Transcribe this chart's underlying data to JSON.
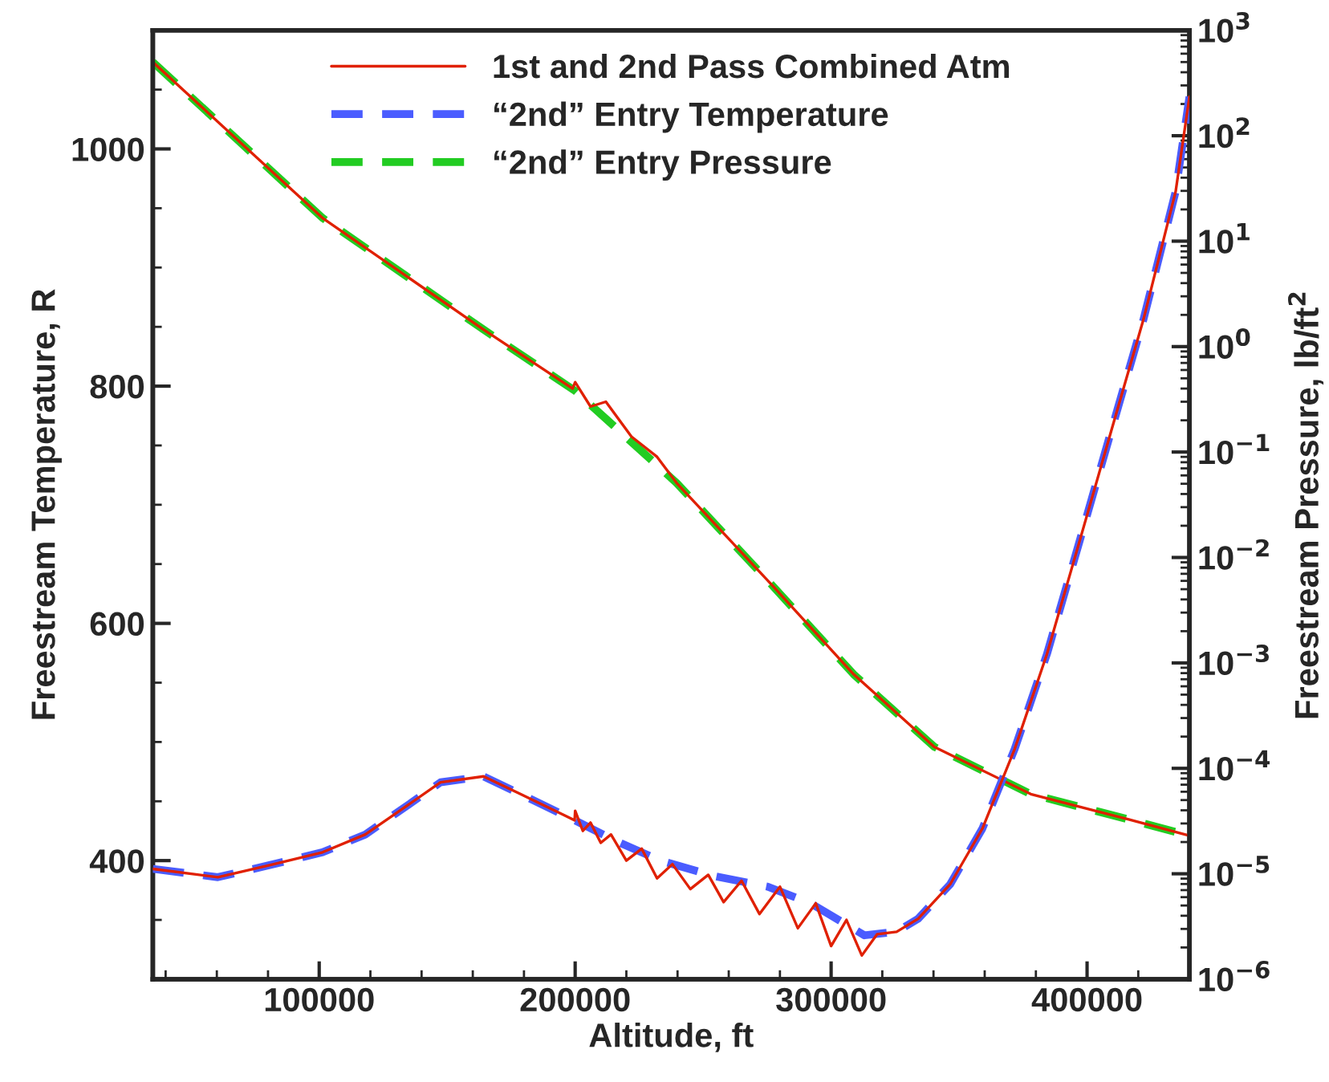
{
  "chart_data": {
    "type": "line",
    "xlabel": "Altitude, ft",
    "ylabel": "Freestream Temperature, R",
    "y2label": "Freestream Pressure, lb/ft$^{2}$",
    "xlim": [
      35000,
      440000
    ],
    "xticks": [
      100000,
      200000,
      300000,
      400000
    ],
    "ylim": [
      300,
      1100
    ],
    "yticks": [
      400,
      600,
      800,
      1000
    ],
    "y2lim": [
      1e-06,
      1000
    ],
    "log": "y2",
    "y2ticks": [
      {
        "value": 1e-06,
        "label": "10$^{−6}$"
      },
      {
        "value": 1e-05,
        "label": "10$^{−5}$"
      },
      {
        "value": 0.0001,
        "label": "10$^{−4}$"
      },
      {
        "value": 0.001,
        "label": "10$^{−3}$"
      },
      {
        "value": 0.01,
        "label": "10$^{−2}$"
      },
      {
        "value": 0.1,
        "label": "10$^{−1}$"
      },
      {
        "value": 1,
        "label": "10$^{0}$"
      },
      {
        "value": 10,
        "label": "10$^{1}$"
      },
      {
        "value": 100,
        "label": "10$^{2}$"
      },
      {
        "value": 1000,
        "label": "10$^{3}$"
      }
    ],
    "legend": "top",
    "series": [
      {
        "name": "“2nd” Entry Temperature",
        "color": "#4a5cff",
        "line_style": "dashed",
        "x": [
          35000,
          60400,
          80300,
          101300,
          118000,
          134800,
          147400,
          164200,
          178800,
          199800,
          216500,
          233300,
          254300,
          275300,
          292000,
          313000,
          325600,
          334000,
          346500,
          359100,
          371700,
          384300,
          396900,
          409400,
          422000,
          434600,
          440000
        ],
        "values": [
          393,
          386,
          396,
          407,
          422,
          447,
          466,
          471,
          456,
          434,
          416,
          400,
          387,
          378,
          364,
          337,
          340,
          351,
          380,
          427,
          494,
          574,
          668,
          762,
          856,
          964,
          1044
        ]
      },
      {
        "name": "“2nd” Entry Pressure",
        "color": "#22cc22",
        "line_style": "dashed",
        "axis": "y2",
        "x": [
          35000,
          101300,
          164200,
          200000,
          239600,
          277400,
          308800,
          340300,
          378000,
          415700,
          440000
        ],
        "values": [
          500,
          16.6,
          1.45,
          0.38,
          0.051,
          0.0053,
          0.00078,
          0.00016,
          5.7e-05,
          3.3e-05,
          2.3e-05
        ]
      },
      {
        "name": "1st and 2nd Pass Combined Atm",
        "color": "#e02000",
        "line_style": "solid",
        "x": [
          35000,
          60400,
          80300,
          101300,
          118000,
          134800,
          147400,
          164200,
          178800,
          199800,
          200000,
          203000,
          206000,
          210000,
          214000,
          220000,
          226000,
          232000,
          238000,
          245000,
          252000,
          258000,
          265000,
          272000,
          280000,
          287000,
          294000,
          300000,
          306000,
          312000,
          318000,
          325600,
          334000,
          346500,
          359100,
          371700,
          384300,
          396900,
          409400,
          422000,
          434600,
          440000
        ],
        "values": [
          393,
          386,
          396,
          407,
          422,
          447,
          466,
          471,
          456,
          434,
          442,
          425,
          432,
          415,
          422,
          400,
          410,
          385,
          397,
          376,
          388,
          365,
          383,
          355,
          378,
          343,
          364,
          328,
          350,
          320,
          338,
          340,
          351,
          380,
          427,
          494,
          574,
          668,
          762,
          856,
          964,
          1044
        ]
      },
      {
        "color": "#e02000",
        "line_style": "solid",
        "axis": "y2",
        "x": [
          35000,
          101300,
          164200,
          199000,
          200000,
          206000,
          212000,
          222000,
          232000,
          239600,
          277400,
          308800,
          340300,
          378000,
          415700,
          440000
        ],
        "values": [
          500,
          16.6,
          1.45,
          0.4,
          0.46,
          0.27,
          0.3,
          0.14,
          0.09,
          0.051,
          0.0053,
          0.00078,
          0.00016,
          5.7e-05,
          3.3e-05,
          2.3e-05
        ]
      }
    ]
  }
}
